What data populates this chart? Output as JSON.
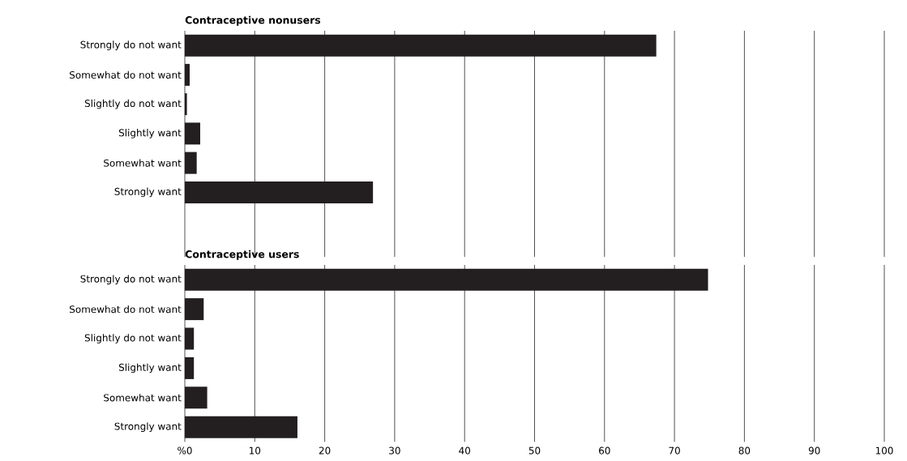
{
  "chart_data": [
    {
      "type": "bar",
      "orientation": "horizontal",
      "title": "Contraceptive nonusers",
      "categories": [
        "Strongly do not want",
        "Somewhat do not want",
        "Slightly do not want",
        "Slightly want",
        "Somewhat want",
        "Strongly want"
      ],
      "values": [
        67.4,
        0.7,
        0.3,
        2.2,
        1.7,
        26.9
      ],
      "color": "#231f20",
      "xlim": [
        0,
        100
      ],
      "xticks": [
        0,
        10,
        20,
        30,
        40,
        50,
        60,
        70,
        80,
        90,
        100
      ],
      "grid": "x",
      "tick_labels": "y"
    },
    {
      "type": "bar",
      "orientation": "horizontal",
      "title": "Contraceptive users",
      "categories": [
        "Strongly do not want",
        "Somewhat do not want",
        "Slightly do not want",
        "Slightly want",
        "Somewhat want",
        "Strongly want"
      ],
      "values": [
        74.8,
        2.7,
        1.3,
        1.3,
        3.2,
        16.1
      ],
      "color": "#231f20",
      "xlim": [
        0,
        100
      ],
      "xticks": [
        {
          "value": 0,
          "label": "%0"
        },
        10,
        20,
        30,
        40,
        50,
        60,
        70,
        80,
        90,
        100
      ],
      "grid": "x"
    }
  ]
}
